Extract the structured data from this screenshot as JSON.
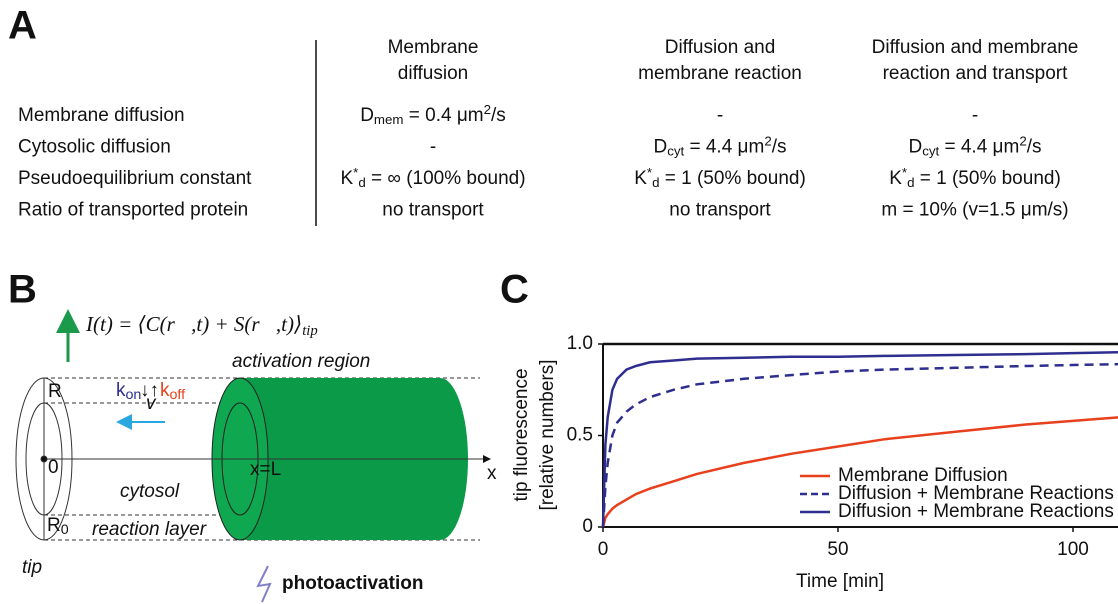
{
  "panel_a": {
    "label": "A",
    "columns": [
      [
        "Membrane",
        "diffusion"
      ],
      [
        "Diffusion and",
        "membrane reaction"
      ],
      [
        "Diffusion and membrane",
        "reaction and transport"
      ]
    ],
    "rows": [
      {
        "label": "Membrane diffusion",
        "cells": [
          [
            {
              "t": "D"
            },
            {
              "sub": "mem"
            },
            {
              "t": " = 0.4 μm"
            },
            {
              "sup": "2"
            },
            {
              "t": "/s"
            }
          ],
          [
            {
              "t": "-"
            }
          ],
          [
            {
              "t": "-"
            }
          ]
        ]
      },
      {
        "label": "Cytosolic diffusion",
        "cells": [
          [
            {
              "t": "-"
            }
          ],
          [
            {
              "t": "D"
            },
            {
              "sub": "cyt"
            },
            {
              "t": " = 4.4 μm"
            },
            {
              "sup": "2"
            },
            {
              "t": "/s"
            }
          ],
          [
            {
              "t": "D"
            },
            {
              "sub": "cyt"
            },
            {
              "t": " = 4.4 μm"
            },
            {
              "sup": "2"
            },
            {
              "t": "/s"
            }
          ]
        ]
      },
      {
        "label": "Pseudoequilibrium constant",
        "cells": [
          [
            {
              "t": "K"
            },
            {
              "sup": "*"
            },
            {
              "sub": "d"
            },
            {
              "t": " = ∞ (100% bound)"
            }
          ],
          [
            {
              "t": "K"
            },
            {
              "sup": "*"
            },
            {
              "sub": "d"
            },
            {
              "t": " = 1  (50% bound)"
            }
          ],
          [
            {
              "t": "K"
            },
            {
              "sup": "*"
            },
            {
              "sub": "d"
            },
            {
              "t": " = 1  (50% bound)"
            }
          ]
        ]
      },
      {
        "label": "Ratio of transported protein",
        "cells": [
          [
            {
              "t": "no transport"
            }
          ],
          [
            {
              "t": "no transport"
            }
          ],
          [
            {
              "t": "m = 10% (v=1.5 μm/s)"
            }
          ]
        ]
      }
    ]
  },
  "panel_b": {
    "label": "B",
    "formula": [
      {
        "t": "I(t) = ⟨C(r⃗,t) + S(r⃗,t)⟩"
      },
      {
        "sub": "tip"
      }
    ],
    "activation_region": "activation region",
    "k_on": "k",
    "k_on_sub": "on",
    "arrows": "↓↑",
    "k_off": "k",
    "k_off_sub": "off",
    "velocity": "v",
    "radius": "R",
    "origin": "0",
    "inner_radius": "R",
    "inner_radius_sub": "0",
    "x_end": "x=L",
    "x_axis": "x",
    "cytosol": "cytosol",
    "reaction_layer": "reaction layer",
    "tip": "tip",
    "photoactivation": "photoactivation"
  },
  "chart_data": {
    "type": "line",
    "panel_label": "C",
    "x_label": "Time [min]",
    "y_label": [
      "tip fluorescence",
      "[relative numbers]"
    ],
    "x": [
      0,
      0.5,
      1,
      2,
      3,
      5,
      7,
      10,
      15,
      20,
      30,
      40,
      50,
      60,
      75,
      90,
      100,
      110
    ],
    "series": [
      {
        "name": "Membrane Diffusion",
        "color": "#e8401c",
        "line_style": "solid",
        "values": [
          0,
          0.05,
          0.07,
          0.1,
          0.12,
          0.15,
          0.18,
          0.21,
          0.25,
          0.29,
          0.35,
          0.4,
          0.44,
          0.48,
          0.52,
          0.56,
          0.58,
          0.6
        ]
      },
      {
        "name": "Diffusion + Membrane Reactions",
        "color": "#2e2e8f",
        "line_style": "dashed",
        "values": [
          0,
          0.22,
          0.35,
          0.5,
          0.57,
          0.63,
          0.67,
          0.71,
          0.75,
          0.78,
          0.81,
          0.83,
          0.85,
          0.86,
          0.87,
          0.88,
          0.885,
          0.89
        ]
      },
      {
        "name": "Diffusion + Membrane Reactions + Transport",
        "color": "#2e2e8f",
        "line_style": "solid",
        "values": [
          0,
          0.45,
          0.6,
          0.75,
          0.81,
          0.86,
          0.88,
          0.9,
          0.91,
          0.92,
          0.925,
          0.93,
          0.93,
          0.935,
          0.94,
          0.945,
          0.95,
          0.955
        ]
      }
    ],
    "xlim": [
      0,
      110
    ],
    "xticks": [
      0,
      50,
      100
    ],
    "ylim": [
      0,
      1
    ],
    "yticks": [
      0,
      0.5,
      {
        "value": 1,
        "label": "1.0"
      }
    ]
  }
}
